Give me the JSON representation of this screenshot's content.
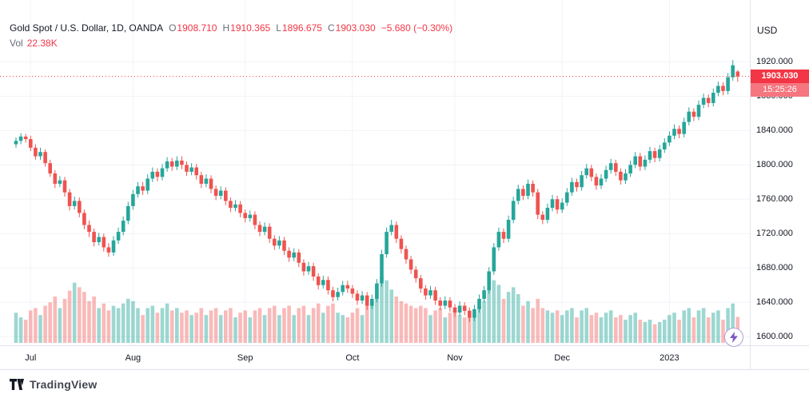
{
  "legend": {
    "title": "Gold Spot / U.S. Dollar, 1D, OANDA",
    "o_label": "O",
    "o_value": "1908.710",
    "h_label": "H",
    "h_value": "1910.365",
    "l_label": "L",
    "l_value": "1896.675",
    "c_label": "C",
    "c_value": "1903.030",
    "change": "−5.680 (−0.30%)",
    "vol_label": "Vol",
    "vol_value": "22.38K"
  },
  "axis": {
    "currency": "USD"
  },
  "last_price": {
    "badge": "1903.030",
    "time": "15:25:26",
    "value": 1903.03
  },
  "footer": {
    "brand": "TradingView"
  },
  "colors": {
    "up": "#26a69a",
    "down": "#ef5350",
    "up_vol": "rgba(38,166,154,0.45)",
    "down_vol": "rgba(239,83,80,0.40)",
    "accent_red": "#f23645",
    "grid": "#f0f3f7",
    "axis_border": "#e0e3eb",
    "bolt_purple": "#7e57c2"
  },
  "chart_data": {
    "type": "candlestick",
    "title": "Gold Spot / U.S. Dollar, 1D, OANDA",
    "symbol": "Gold Spot / U.S. Dollar",
    "interval": "1D",
    "exchange": "OANDA",
    "ohlc_last": {
      "open": 1908.71,
      "high": 1910.365,
      "low": 1896.675,
      "close": 1903.03,
      "change": -5.68,
      "change_pct": -0.3
    },
    "volume_last_k": 22.38,
    "last_price_line": 1903.03,
    "ylabel": "USD",
    "y_range_displayed": [
      1585,
      1992
    ],
    "grid": true,
    "y_ticks": [
      {
        "label": "1920.000",
        "value": 1920
      },
      {
        "label": "1880.000",
        "value": 1880
      },
      {
        "label": "1840.000",
        "value": 1840
      },
      {
        "label": "1800.000",
        "value": 1800
      },
      {
        "label": "1760.000",
        "value": 1760
      },
      {
        "label": "1720.000",
        "value": 1720
      },
      {
        "label": "1680.000",
        "value": 1680
      },
      {
        "label": "1640.000",
        "value": 1640
      },
      {
        "label": "1600.000",
        "value": 1600
      }
    ],
    "x_ticks": [
      {
        "label": "Jul",
        "index": 3
      },
      {
        "label": "Aug",
        "index": 24
      },
      {
        "label": "Sep",
        "index": 47
      },
      {
        "label": "Oct",
        "index": 69
      },
      {
        "label": "Nov",
        "index": 90
      },
      {
        "label": "Dec",
        "index": 112
      },
      {
        "label": "2023",
        "index": 134
      }
    ],
    "candles_format": [
      "open",
      "high",
      "low",
      "close",
      "volume_k"
    ],
    "candles": [
      [
        1824,
        1832,
        1820,
        1828,
        26
      ],
      [
        1828,
        1837,
        1824,
        1833,
        22
      ],
      [
        1833,
        1836,
        1826,
        1830,
        20
      ],
      [
        1830,
        1834,
        1816,
        1820,
        28
      ],
      [
        1820,
        1824,
        1806,
        1810,
        30
      ],
      [
        1810,
        1820,
        1806,
        1815,
        24
      ],
      [
        1815,
        1818,
        1798,
        1802,
        32
      ],
      [
        1802,
        1806,
        1786,
        1790,
        35
      ],
      [
        1790,
        1794,
        1773,
        1778,
        40
      ],
      [
        1778,
        1787,
        1774,
        1782,
        30
      ],
      [
        1782,
        1786,
        1763,
        1768,
        38
      ],
      [
        1768,
        1772,
        1747,
        1752,
        45
      ],
      [
        1752,
        1763,
        1748,
        1758,
        52
      ],
      [
        1758,
        1762,
        1739,
        1744,
        48
      ],
      [
        1744,
        1748,
        1725,
        1730,
        44
      ],
      [
        1730,
        1735,
        1716,
        1722,
        36
      ],
      [
        1722,
        1726,
        1705,
        1710,
        40
      ],
      [
        1710,
        1721,
        1706,
        1716,
        30
      ],
      [
        1716,
        1720,
        1699,
        1704,
        34
      ],
      [
        1704,
        1709,
        1693,
        1698,
        28
      ],
      [
        1698,
        1717,
        1694,
        1712,
        32
      ],
      [
        1712,
        1727,
        1708,
        1722,
        30
      ],
      [
        1722,
        1740,
        1718,
        1735,
        34
      ],
      [
        1735,
        1757,
        1731,
        1752,
        38
      ],
      [
        1752,
        1771,
        1748,
        1766,
        36
      ],
      [
        1766,
        1780,
        1762,
        1775,
        30
      ],
      [
        1775,
        1780,
        1765,
        1770,
        24
      ],
      [
        1770,
        1789,
        1766,
        1784,
        30
      ],
      [
        1784,
        1797,
        1780,
        1792,
        32
      ],
      [
        1792,
        1796,
        1781,
        1786,
        26
      ],
      [
        1786,
        1801,
        1782,
        1796,
        30
      ],
      [
        1796,
        1809,
        1792,
        1804,
        34
      ],
      [
        1804,
        1808,
        1793,
        1798,
        28
      ],
      [
        1798,
        1810,
        1794,
        1805,
        30
      ],
      [
        1805,
        1810,
        1795,
        1800,
        26
      ],
      [
        1800,
        1804,
        1787,
        1792,
        28
      ],
      [
        1792,
        1802,
        1788,
        1797,
        24
      ],
      [
        1797,
        1801,
        1783,
        1788,
        26
      ],
      [
        1788,
        1792,
        1773,
        1778,
        30
      ],
      [
        1778,
        1789,
        1774,
        1784,
        24
      ],
      [
        1784,
        1788,
        1767,
        1772,
        28
      ],
      [
        1772,
        1776,
        1759,
        1764,
        30
      ],
      [
        1764,
        1775,
        1760,
        1770,
        24
      ],
      [
        1770,
        1774,
        1753,
        1758,
        28
      ],
      [
        1758,
        1762,
        1745,
        1750,
        30
      ],
      [
        1750,
        1759,
        1746,
        1754,
        22
      ],
      [
        1754,
        1758,
        1739,
        1744,
        26
      ],
      [
        1744,
        1748,
        1733,
        1738,
        28
      ],
      [
        1738,
        1747,
        1734,
        1742,
        22
      ],
      [
        1742,
        1746,
        1725,
        1730,
        28
      ],
      [
        1730,
        1734,
        1717,
        1722,
        30
      ],
      [
        1722,
        1733,
        1718,
        1728,
        24
      ],
      [
        1728,
        1732,
        1709,
        1714,
        30
      ],
      [
        1714,
        1718,
        1701,
        1706,
        32
      ],
      [
        1706,
        1717,
        1702,
        1712,
        24
      ],
      [
        1712,
        1716,
        1695,
        1700,
        30
      ],
      [
        1700,
        1704,
        1687,
        1692,
        32
      ],
      [
        1692,
        1703,
        1688,
        1698,
        24
      ],
      [
        1698,
        1702,
        1681,
        1686,
        30
      ],
      [
        1686,
        1690,
        1671,
        1676,
        32
      ],
      [
        1676,
        1687,
        1672,
        1682,
        24
      ],
      [
        1682,
        1686,
        1665,
        1670,
        30
      ],
      [
        1670,
        1674,
        1655,
        1660,
        34
      ],
      [
        1660,
        1671,
        1656,
        1666,
        26
      ],
      [
        1666,
        1670,
        1649,
        1654,
        32
      ],
      [
        1654,
        1658,
        1641,
        1646,
        34
      ],
      [
        1646,
        1657,
        1642,
        1652,
        26
      ],
      [
        1652,
        1665,
        1648,
        1660,
        24
      ],
      [
        1660,
        1665,
        1651,
        1656,
        22
      ],
      [
        1656,
        1660,
        1645,
        1650,
        26
      ],
      [
        1650,
        1654,
        1637,
        1642,
        30
      ],
      [
        1642,
        1653,
        1638,
        1648,
        24
      ],
      [
        1648,
        1652,
        1631,
        1636,
        32
      ],
      [
        1636,
        1649,
        1632,
        1644,
        36
      ],
      [
        1644,
        1667,
        1640,
        1662,
        48
      ],
      [
        1662,
        1701,
        1658,
        1696,
        58
      ],
      [
        1696,
        1727,
        1692,
        1722,
        54
      ],
      [
        1722,
        1736,
        1718,
        1730,
        46
      ],
      [
        1730,
        1734,
        1709,
        1714,
        40
      ],
      [
        1714,
        1718,
        1697,
        1702,
        36
      ],
      [
        1702,
        1706,
        1685,
        1690,
        34
      ],
      [
        1690,
        1694,
        1673,
        1678,
        32
      ],
      [
        1678,
        1682,
        1663,
        1668,
        30
      ],
      [
        1668,
        1672,
        1651,
        1656,
        32
      ],
      [
        1656,
        1660,
        1643,
        1648,
        30
      ],
      [
        1648,
        1659,
        1644,
        1654,
        24
      ],
      [
        1654,
        1658,
        1637,
        1642,
        28
      ],
      [
        1642,
        1646,
        1631,
        1636,
        30
      ],
      [
        1636,
        1647,
        1632,
        1642,
        22
      ],
      [
        1642,
        1646,
        1629,
        1634,
        26
      ],
      [
        1634,
        1638,
        1623,
        1628,
        28
      ],
      [
        1628,
        1641,
        1624,
        1636,
        24
      ],
      [
        1636,
        1640,
        1625,
        1630,
        22
      ],
      [
        1630,
        1634,
        1617,
        1622,
        28
      ],
      [
        1622,
        1637,
        1618,
        1632,
        26
      ],
      [
        1632,
        1649,
        1628,
        1644,
        32
      ],
      [
        1644,
        1659,
        1640,
        1654,
        36
      ],
      [
        1654,
        1681,
        1650,
        1676,
        46
      ],
      [
        1676,
        1709,
        1672,
        1704,
        54
      ],
      [
        1704,
        1727,
        1700,
        1722,
        50
      ],
      [
        1722,
        1726,
        1709,
        1714,
        38
      ],
      [
        1714,
        1741,
        1710,
        1736,
        44
      ],
      [
        1736,
        1763,
        1732,
        1758,
        48
      ],
      [
        1758,
        1777,
        1754,
        1772,
        42
      ],
      [
        1772,
        1776,
        1759,
        1764,
        32
      ],
      [
        1764,
        1783,
        1760,
        1778,
        36
      ],
      [
        1778,
        1782,
        1763,
        1768,
        30
      ],
      [
        1768,
        1772,
        1737,
        1742,
        38
      ],
      [
        1742,
        1746,
        1731,
        1736,
        30
      ],
      [
        1736,
        1755,
        1732,
        1750,
        28
      ],
      [
        1750,
        1765,
        1746,
        1760,
        26
      ],
      [
        1760,
        1764,
        1743,
        1748,
        28
      ],
      [
        1748,
        1761,
        1744,
        1756,
        24
      ],
      [
        1756,
        1773,
        1752,
        1768,
        28
      ],
      [
        1768,
        1785,
        1764,
        1780,
        30
      ],
      [
        1780,
        1784,
        1769,
        1774,
        22
      ],
      [
        1774,
        1793,
        1770,
        1788,
        28
      ],
      [
        1788,
        1801,
        1784,
        1796,
        30
      ],
      [
        1796,
        1800,
        1781,
        1786,
        24
      ],
      [
        1786,
        1790,
        1771,
        1776,
        26
      ],
      [
        1776,
        1789,
        1772,
        1784,
        22
      ],
      [
        1784,
        1799,
        1780,
        1794,
        26
      ],
      [
        1794,
        1807,
        1790,
        1802,
        28
      ],
      [
        1802,
        1806,
        1787,
        1792,
        22
      ],
      [
        1792,
        1796,
        1777,
        1782,
        24
      ],
      [
        1782,
        1795,
        1778,
        1790,
        20
      ],
      [
        1790,
        1805,
        1786,
        1800,
        24
      ],
      [
        1800,
        1815,
        1796,
        1810,
        26
      ],
      [
        1810,
        1814,
        1793,
        1798,
        20
      ],
      [
        1798,
        1811,
        1794,
        1806,
        18
      ],
      [
        1806,
        1821,
        1802,
        1816,
        20
      ],
      [
        1816,
        1820,
        1803,
        1808,
        16
      ],
      [
        1808,
        1823,
        1804,
        1818,
        18
      ],
      [
        1818,
        1831,
        1814,
        1826,
        20
      ],
      [
        1826,
        1839,
        1822,
        1834,
        24
      ],
      [
        1834,
        1847,
        1830,
        1842,
        26
      ],
      [
        1842,
        1846,
        1831,
        1836,
        20
      ],
      [
        1836,
        1855,
        1832,
        1850,
        28
      ],
      [
        1850,
        1867,
        1846,
        1862,
        30
      ],
      [
        1862,
        1866,
        1851,
        1856,
        22
      ],
      [
        1856,
        1875,
        1852,
        1870,
        28
      ],
      [
        1870,
        1883,
        1866,
        1878,
        30
      ],
      [
        1878,
        1882,
        1867,
        1872,
        22
      ],
      [
        1872,
        1889,
        1868,
        1884,
        26
      ],
      [
        1884,
        1897,
        1880,
        1892,
        28
      ],
      [
        1892,
        1896,
        1881,
        1886,
        20
      ],
      [
        1886,
        1907,
        1882,
        1902,
        30
      ],
      [
        1902,
        1922,
        1898,
        1916,
        34
      ],
      [
        1908.71,
        1910.365,
        1896.675,
        1903.03,
        22.38
      ]
    ]
  }
}
